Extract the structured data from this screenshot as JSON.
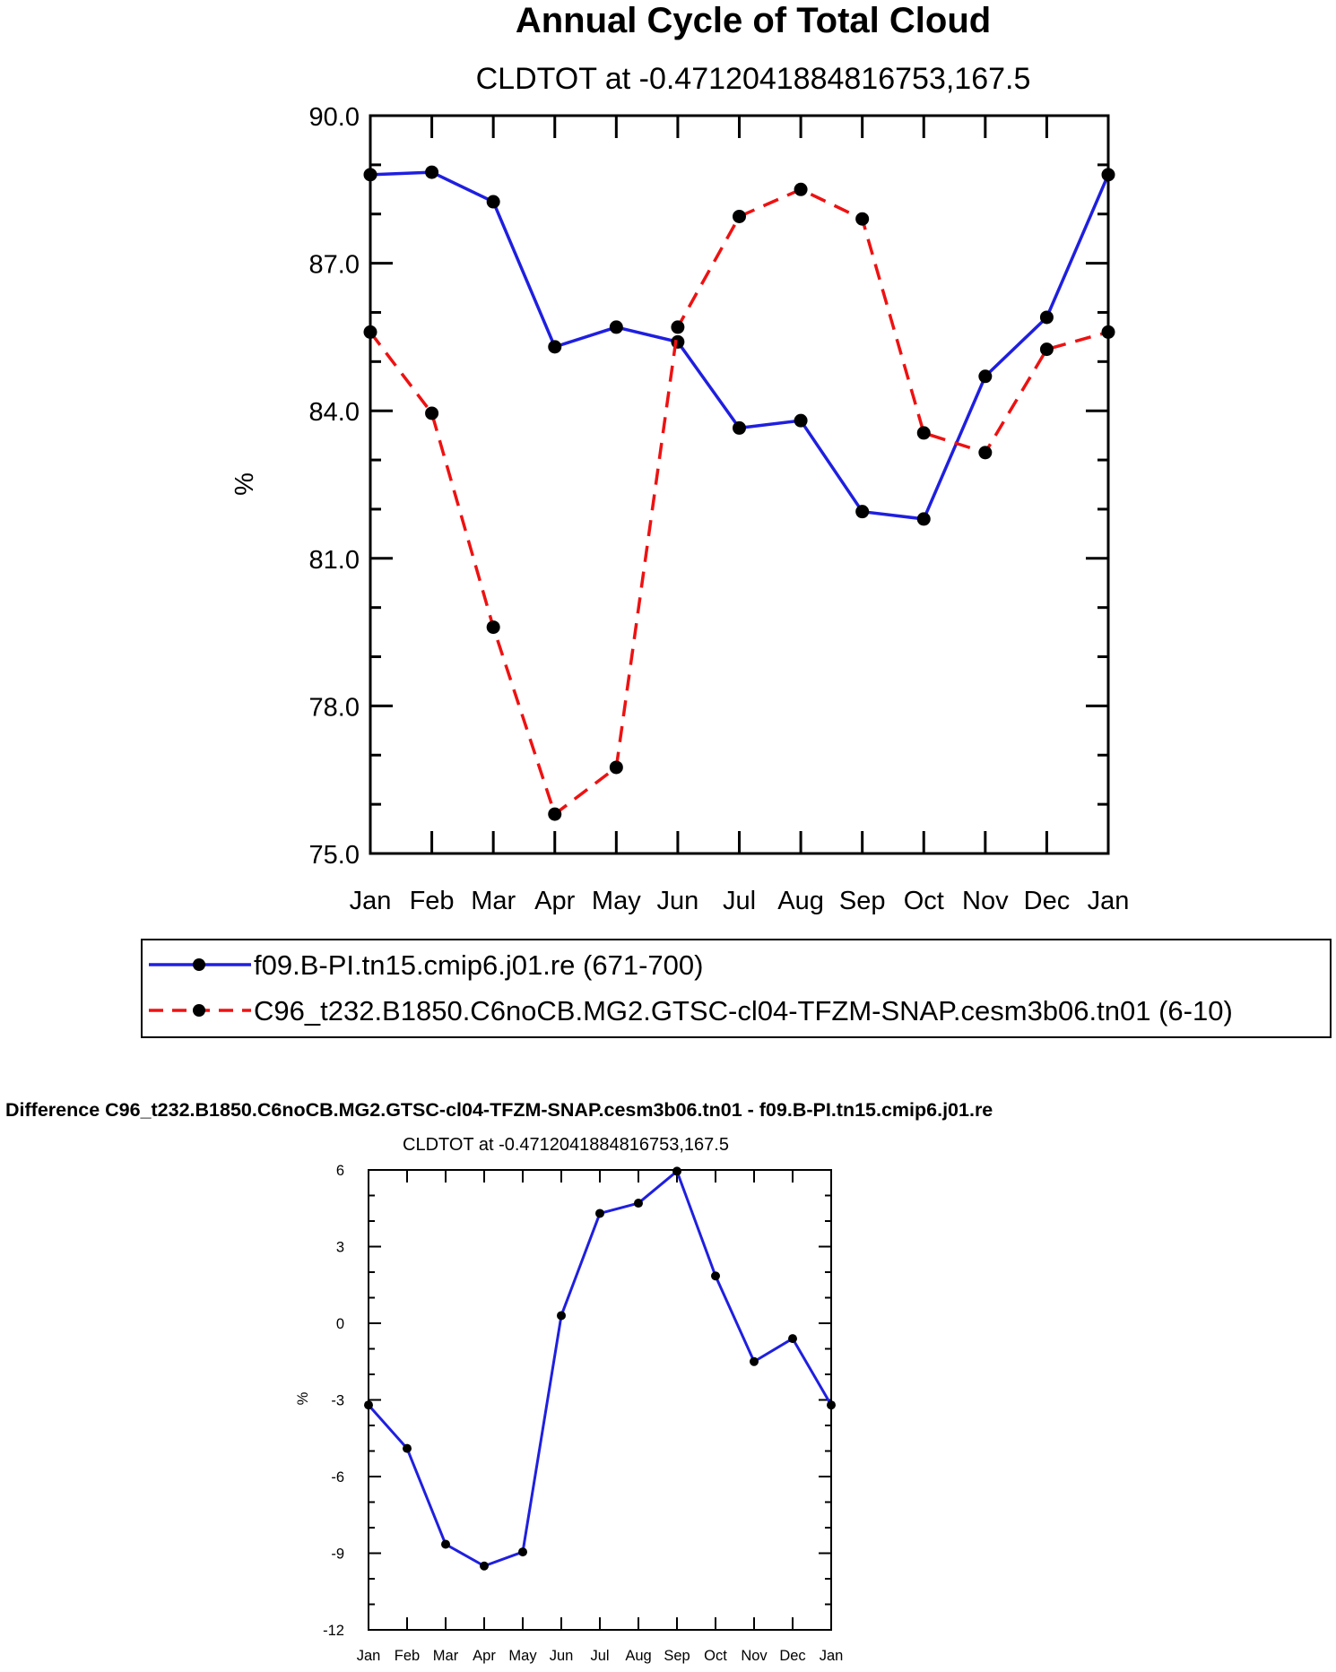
{
  "chart_data": [
    {
      "type": "line",
      "title": "Annual Cycle of Total Cloud",
      "subtitle": "CLDTOT at -0.4712041884816753,167.5",
      "ylabel": "%",
      "xlabel": "",
      "ylim": [
        75.0,
        90.0
      ],
      "yticks": [
        "75.0",
        "78.0",
        "81.0",
        "84.0",
        "87.0",
        "90.0"
      ],
      "ytick_values": [
        75,
        78,
        81,
        84,
        87,
        90
      ],
      "categories": [
        "Jan",
        "Feb",
        "Mar",
        "Apr",
        "May",
        "Jun",
        "Jul",
        "Aug",
        "Sep",
        "Oct",
        "Nov",
        "Dec",
        "Jan"
      ],
      "series": [
        {
          "name": "f09.B-PI.tn15.cmip6.j01.re (671-700)",
          "color": "#1f1fe0",
          "style": "solid",
          "values": [
            88.8,
            88.85,
            88.25,
            85.3,
            85.7,
            85.4,
            83.65,
            83.8,
            81.95,
            81.8,
            84.7,
            85.9,
            88.8
          ]
        },
        {
          "name": "C96_t232.B1850.C6noCB.MG2.GTSC-cl04-TFZM-SNAP.cesm3b06.tn01 (6-10)",
          "color": "#ee1111",
          "style": "dashed",
          "values": [
            85.6,
            83.95,
            79.6,
            75.8,
            76.75,
            85.7,
            87.95,
            88.5,
            87.9,
            83.55,
            83.15,
            85.25,
            85.6
          ]
        }
      ]
    },
    {
      "type": "line",
      "title": "Difference C96_t232.B1850.C6noCB.MG2.GTSC-cl04-TFZM-SNAP.cesm3b06.tn01 - f09.B-PI.tn15.cmip6.j01.re",
      "subtitle": "CLDTOT at -0.4712041884816753,167.5",
      "ylabel": "%",
      "xlabel": "",
      "ylim": [
        -12,
        6
      ],
      "yticks": [
        "-12",
        "-9",
        "-6",
        "-3",
        "0",
        "3",
        "6"
      ],
      "ytick_values": [
        -12,
        -9,
        -6,
        -3,
        0,
        3,
        6
      ],
      "categories": [
        "Jan",
        "Feb",
        "Mar",
        "Apr",
        "May",
        "Jun",
        "Jul",
        "Aug",
        "Sep",
        "Oct",
        "Nov",
        "Dec",
        "Jan"
      ],
      "series": [
        {
          "name": "Difference",
          "color": "#1f1fe0",
          "style": "solid",
          "values": [
            -3.2,
            -4.9,
            -8.65,
            -9.5,
            -8.95,
            0.3,
            4.3,
            4.7,
            5.95,
            1.85,
            -1.5,
            -0.6,
            -3.2
          ]
        }
      ]
    }
  ]
}
